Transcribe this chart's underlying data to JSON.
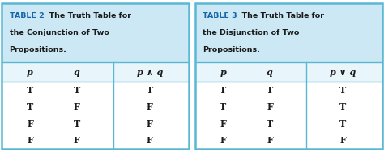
{
  "tables": [
    {
      "title_bold": "TABLE 2",
      "title_line1_rest": "  The Truth Table for",
      "title_line2": "the Conjunction of Two",
      "title_line3": "Propositions.",
      "col_headers": [
        "p",
        "q",
        "p ∧ q"
      ],
      "rows": [
        [
          "T",
          "T",
          "T"
        ],
        [
          "T",
          "F",
          "F"
        ],
        [
          "F",
          "T",
          "F"
        ],
        [
          "F",
          "F",
          "F"
        ]
      ]
    },
    {
      "title_bold": "TABLE 3",
      "title_line1_rest": "  The Truth Table for",
      "title_line2": "the Disjunction of Two",
      "title_line3": "Propositions.",
      "col_headers": [
        "p",
        "q",
        "p ∨ q"
      ],
      "rows": [
        [
          "T",
          "T",
          "T"
        ],
        [
          "T",
          "F",
          "T"
        ],
        [
          "F",
          "T",
          "T"
        ],
        [
          "F",
          "F",
          "F"
        ]
      ]
    }
  ],
  "fig_bg": "#ffffff",
  "header_bg": "#cce8f4",
  "border_color": "#5bb8d4",
  "col_header_bg": "#e8f5fb",
  "title_color": "#1565a8",
  "text_color": "#1a1a1a",
  "body_bg": "#ffffff"
}
